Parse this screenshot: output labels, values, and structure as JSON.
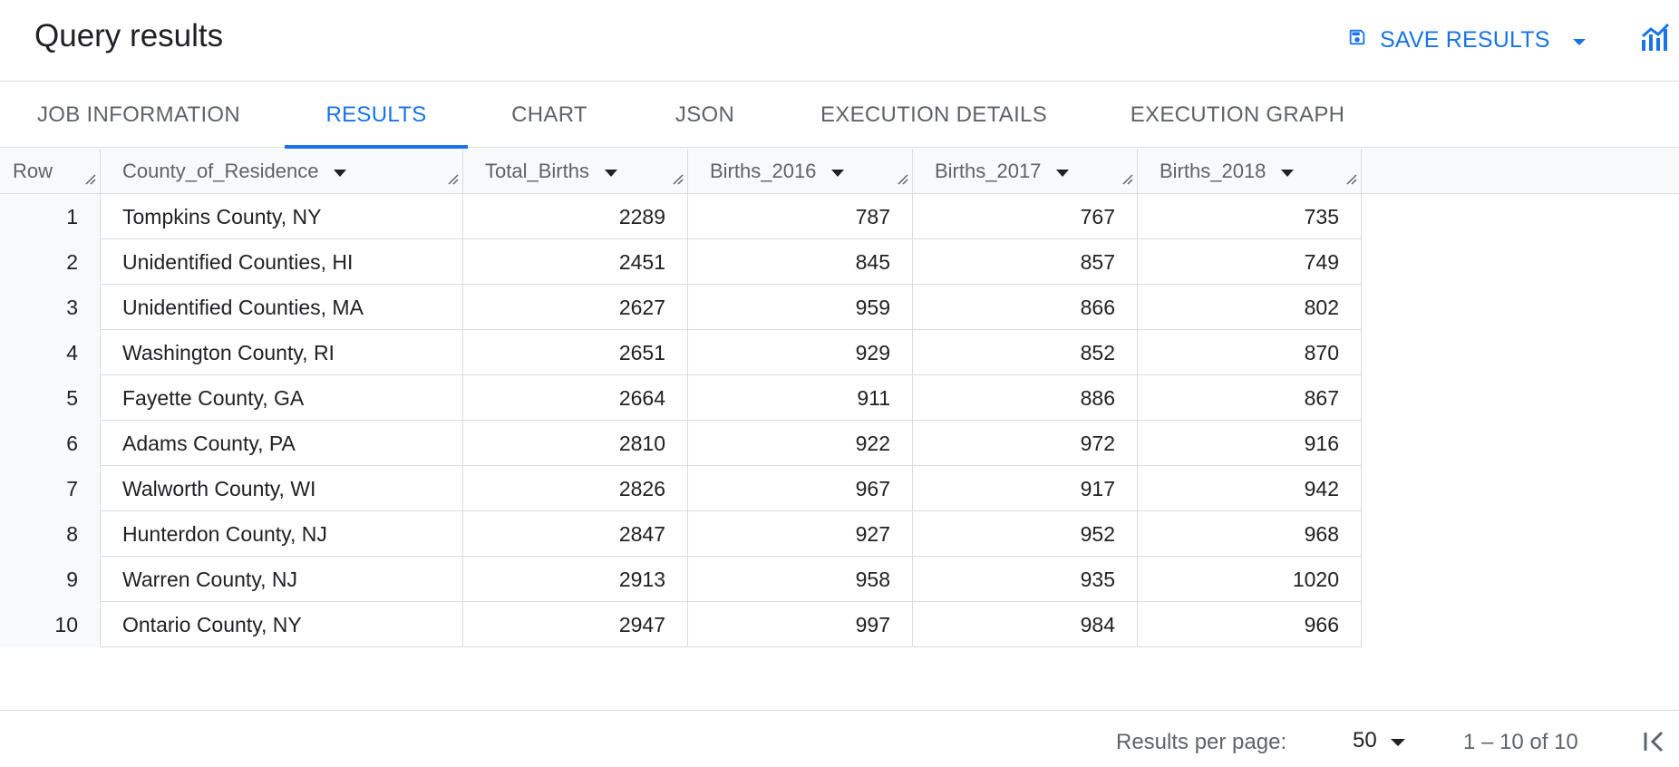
{
  "header": {
    "title": "Query results",
    "save_label": "SAVE RESULTS"
  },
  "tabs": [
    {
      "label": "JOB INFORMATION"
    },
    {
      "label": "RESULTS"
    },
    {
      "label": "CHART"
    },
    {
      "label": "JSON"
    },
    {
      "label": "EXECUTION DETAILS"
    },
    {
      "label": "EXECUTION GRAPH"
    }
  ],
  "active_tab": "RESULTS",
  "table": {
    "columns": [
      "Row",
      "County_of_Residence",
      "Total_Births",
      "Births_2016",
      "Births_2017",
      "Births_2018"
    ],
    "rows": [
      [
        "1",
        "Tompkins County, NY",
        "2289",
        "787",
        "767",
        "735"
      ],
      [
        "2",
        "Unidentified Counties, HI",
        "2451",
        "845",
        "857",
        "749"
      ],
      [
        "3",
        "Unidentified Counties, MA",
        "2627",
        "959",
        "866",
        "802"
      ],
      [
        "4",
        "Washington County, RI",
        "2651",
        "929",
        "852",
        "870"
      ],
      [
        "5",
        "Fayette County, GA",
        "2664",
        "911",
        "886",
        "867"
      ],
      [
        "6",
        "Adams County, PA",
        "2810",
        "922",
        "972",
        "916"
      ],
      [
        "7",
        "Walworth County, WI",
        "2826",
        "967",
        "917",
        "942"
      ],
      [
        "8",
        "Hunterdon County, NJ",
        "2847",
        "927",
        "952",
        "968"
      ],
      [
        "9",
        "Warren County, NJ",
        "2913",
        "958",
        "935",
        "1020"
      ],
      [
        "10",
        "Ontario County, NY",
        "2947",
        "997",
        "984",
        "966"
      ]
    ]
  },
  "footer": {
    "rpp_label": "Results per page:",
    "rpp_value": "50",
    "range": "1 – 10 of 10"
  },
  "colors": {
    "accent": "#1a73e8",
    "border": "#dadce0",
    "header_bg": "#f8f9fa",
    "muted_text": "#5f6368"
  },
  "icons": [
    "save-icon",
    "chevron-down-icon",
    "chart-icon",
    "sort-arrow-icon",
    "column-resize-icon",
    "first-page-icon"
  ]
}
